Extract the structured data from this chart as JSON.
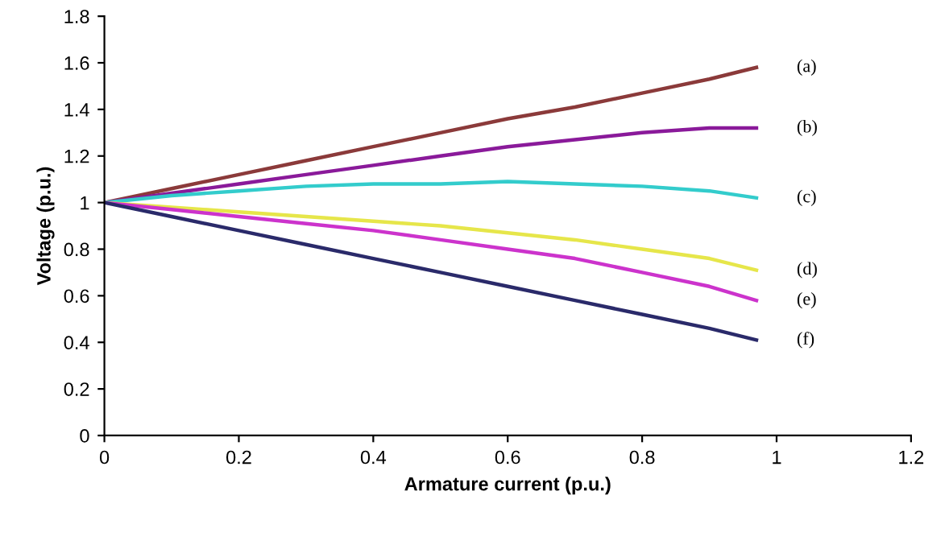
{
  "chart_data": {
    "type": "line",
    "xlabel": "Armature current (p.u.)",
    "ylabel": "Voltage (p.u.)",
    "x": [
      0,
      0.1,
      0.2,
      0.3,
      0.4,
      0.5,
      0.6,
      0.7,
      0.8,
      0.9,
      0.97
    ],
    "series": [
      {
        "name": "(a)",
        "color": "#8b3a3a",
        "values": [
          1.0,
          1.06,
          1.12,
          1.18,
          1.24,
          1.3,
          1.36,
          1.41,
          1.47,
          1.53,
          1.58
        ]
      },
      {
        "name": "(b)",
        "color": "#8a1a9a",
        "values": [
          1.0,
          1.04,
          1.08,
          1.12,
          1.16,
          1.2,
          1.24,
          1.27,
          1.3,
          1.32,
          1.32
        ]
      },
      {
        "name": "(c)",
        "color": "#33cccc",
        "values": [
          1.0,
          1.03,
          1.05,
          1.07,
          1.08,
          1.08,
          1.09,
          1.08,
          1.07,
          1.05,
          1.02
        ]
      },
      {
        "name": "(d)",
        "color": "#e6e64a",
        "values": [
          1.0,
          0.98,
          0.96,
          0.94,
          0.92,
          0.9,
          0.87,
          0.84,
          0.8,
          0.76,
          0.71
        ]
      },
      {
        "name": "(e)",
        "color": "#cc33cc",
        "values": [
          1.0,
          0.97,
          0.94,
          0.91,
          0.88,
          0.84,
          0.8,
          0.76,
          0.7,
          0.64,
          0.58
        ]
      },
      {
        "name": "(f)",
        "color": "#2a2a6a",
        "values": [
          1.0,
          0.94,
          0.88,
          0.82,
          0.76,
          0.7,
          0.64,
          0.58,
          0.52,
          0.46,
          0.41
        ]
      }
    ],
    "xlim": [
      0,
      1.2
    ],
    "xticks": [
      0,
      0.2,
      0.4,
      0.6,
      0.8,
      1,
      1.2
    ],
    "ylim": [
      0,
      1.8
    ],
    "yticks": [
      0,
      0.2,
      0.4,
      0.6,
      0.8,
      1,
      1.2,
      1.4,
      1.6,
      1.8
    ],
    "grid": false,
    "legend": false
  }
}
